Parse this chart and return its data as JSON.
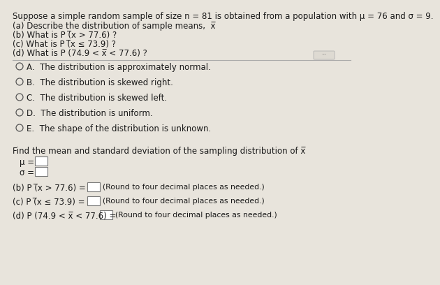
{
  "bg_color": "#e8e4dc",
  "inner_bg": "#f5f4f0",
  "text_color": "#1a1a1a",
  "title_line": "Suppose a simple random sample of size n = 81 is obtained from a population with μ = 76 and σ = 9.",
  "q_a": "(a) Describe the distribution of sample means,  x̅",
  "q_b": "(b) What is P (̅x > 77.6) ?",
  "q_c": "(c) What is P (̅x ≤ 73.9) ?",
  "q_d": "(d) What is P (74.9 < x̅ < 77.6) ?",
  "options": [
    "A.  The distribution is approximately normal.",
    "B.  The distribution is skewed right.",
    "C.  The distribution is skewed left.",
    "D.  The distribution is uniform.",
    "E.  The shape of the distribution is unknown."
  ],
  "find_text": "Find the mean and standard deviation of the sampling distribution of x̅",
  "mu_label": "μ =",
  "sigma_label": "σ =",
  "part_b_text": "(b) P (̅x > 77.6) =",
  "part_c_text": "(c) P (̅x ≤ 73.9) =",
  "part_d_text": "(d) P (74.9 < x̅ < 77.6) =",
  "round_note": "(Round to four decimal places as needed.)"
}
